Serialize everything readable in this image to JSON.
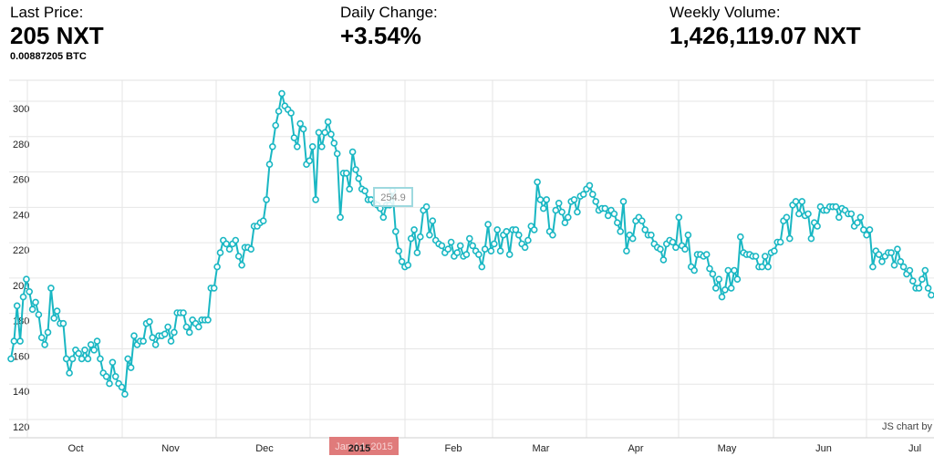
{
  "stats": {
    "price": {
      "label": "Last Price:",
      "value": "205 NXT",
      "sub": "0.00887205 BTC"
    },
    "change": {
      "label": "Daily Change:",
      "value": "+3.54%"
    },
    "volume": {
      "label": "Weekly Volume:",
      "value": "1,426,119.07 NXT"
    }
  },
  "credit": "JS chart by",
  "colors": {
    "line": "#1ab7c3",
    "grid": "#e6e6e6",
    "crosshair": "#e07b7b"
  },
  "tooltip": {
    "text": "254.9"
  },
  "crosshair_label": {
    "text": "Jan 14, 2015"
  },
  "chart_data": {
    "type": "line",
    "ylim": [
      120,
      300
    ],
    "yticks": [
      120,
      140,
      160,
      180,
      200,
      220,
      240,
      260,
      280,
      300
    ],
    "xticks": [
      {
        "label": "Oct",
        "bold": false
      },
      {
        "label": "Nov",
        "bold": false
      },
      {
        "label": "Dec",
        "bold": false
      },
      {
        "label": "2015",
        "bold": true
      },
      {
        "label": "Feb",
        "bold": false
      },
      {
        "label": "Mar",
        "bold": false
      },
      {
        "label": "Apr",
        "bold": false
      },
      {
        "label": "May",
        "bold": false
      },
      {
        "label": "Jun",
        "bold": false
      },
      {
        "label": "Jul",
        "bold": false
      }
    ],
    "series": [
      {
        "values": [
          160,
          170,
          190,
          170,
          195,
          205,
          198,
          188,
          192,
          185,
          172,
          168,
          175,
          200,
          183,
          187,
          180,
          180,
          160,
          152,
          160,
          165,
          163,
          160,
          165,
          160,
          168,
          165,
          170,
          160,
          152,
          150,
          146,
          158,
          150,
          146,
          144,
          140,
          160,
          155,
          173,
          168,
          170,
          170,
          180,
          181,
          172,
          168,
          173,
          173,
          174,
          178,
          170,
          175,
          186,
          186,
          186,
          178,
          175,
          182,
          180,
          178,
          182,
          182,
          182,
          200,
          200,
          212,
          220,
          227,
          225,
          222,
          225,
          227,
          218,
          213,
          223,
          223,
          222,
          235,
          235,
          237,
          238,
          250,
          270,
          280,
          292,
          300,
          310,
          303,
          301,
          299,
          285,
          280,
          293,
          290,
          270,
          272,
          280,
          250,
          288,
          280,
          288,
          294,
          287,
          282,
          276,
          240,
          265,
          265,
          256,
          277,
          267,
          262,
          256,
          255,
          250,
          250,
          248,
          247,
          245,
          240,
          247,
          247,
          255,
          232,
          221,
          215,
          212,
          213,
          228,
          233,
          220,
          229,
          244,
          246,
          230,
          238,
          227,
          225,
          224,
          220,
          222,
          226,
          218,
          220,
          224,
          218,
          219,
          228,
          224,
          221,
          219,
          212,
          222,
          236,
          221,
          225,
          233,
          221,
          230,
          232,
          219,
          233,
          233,
          230,
          225,
          223,
          227,
          235,
          233,
          260,
          250,
          245,
          250,
          232,
          230,
          244,
          248,
          243,
          237,
          240,
          249,
          250,
          243,
          252,
          253,
          256,
          258,
          253,
          249,
          244,
          245,
          245,
          241,
          244,
          242,
          237,
          232,
          249,
          221,
          230,
          228,
          238,
          240,
          238,
          233,
          230,
          230,
          225,
          223,
          222,
          216,
          225,
          227,
          226,
          223,
          240,
          224,
          222,
          230,
          212,
          210,
          219,
          219,
          218,
          219,
          211,
          208,
          200,
          205,
          195,
          199,
          210,
          200,
          210,
          205,
          229,
          220,
          219,
          219,
          218,
          218,
          212,
          212,
          218,
          212,
          220,
          221,
          226,
          226,
          238,
          240,
          228,
          247,
          249,
          242,
          249,
          241,
          242,
          228,
          237,
          235,
          246,
          244,
          244,
          246,
          246,
          246,
          240,
          245,
          244,
          242,
          242,
          235,
          237,
          240,
          233,
          230,
          233,
          212,
          221,
          219,
          215,
          218,
          220,
          220,
          213,
          222,
          215,
          212,
          208,
          210,
          204,
          200,
          200,
          205,
          210,
          200,
          196
        ]
      }
    ]
  }
}
